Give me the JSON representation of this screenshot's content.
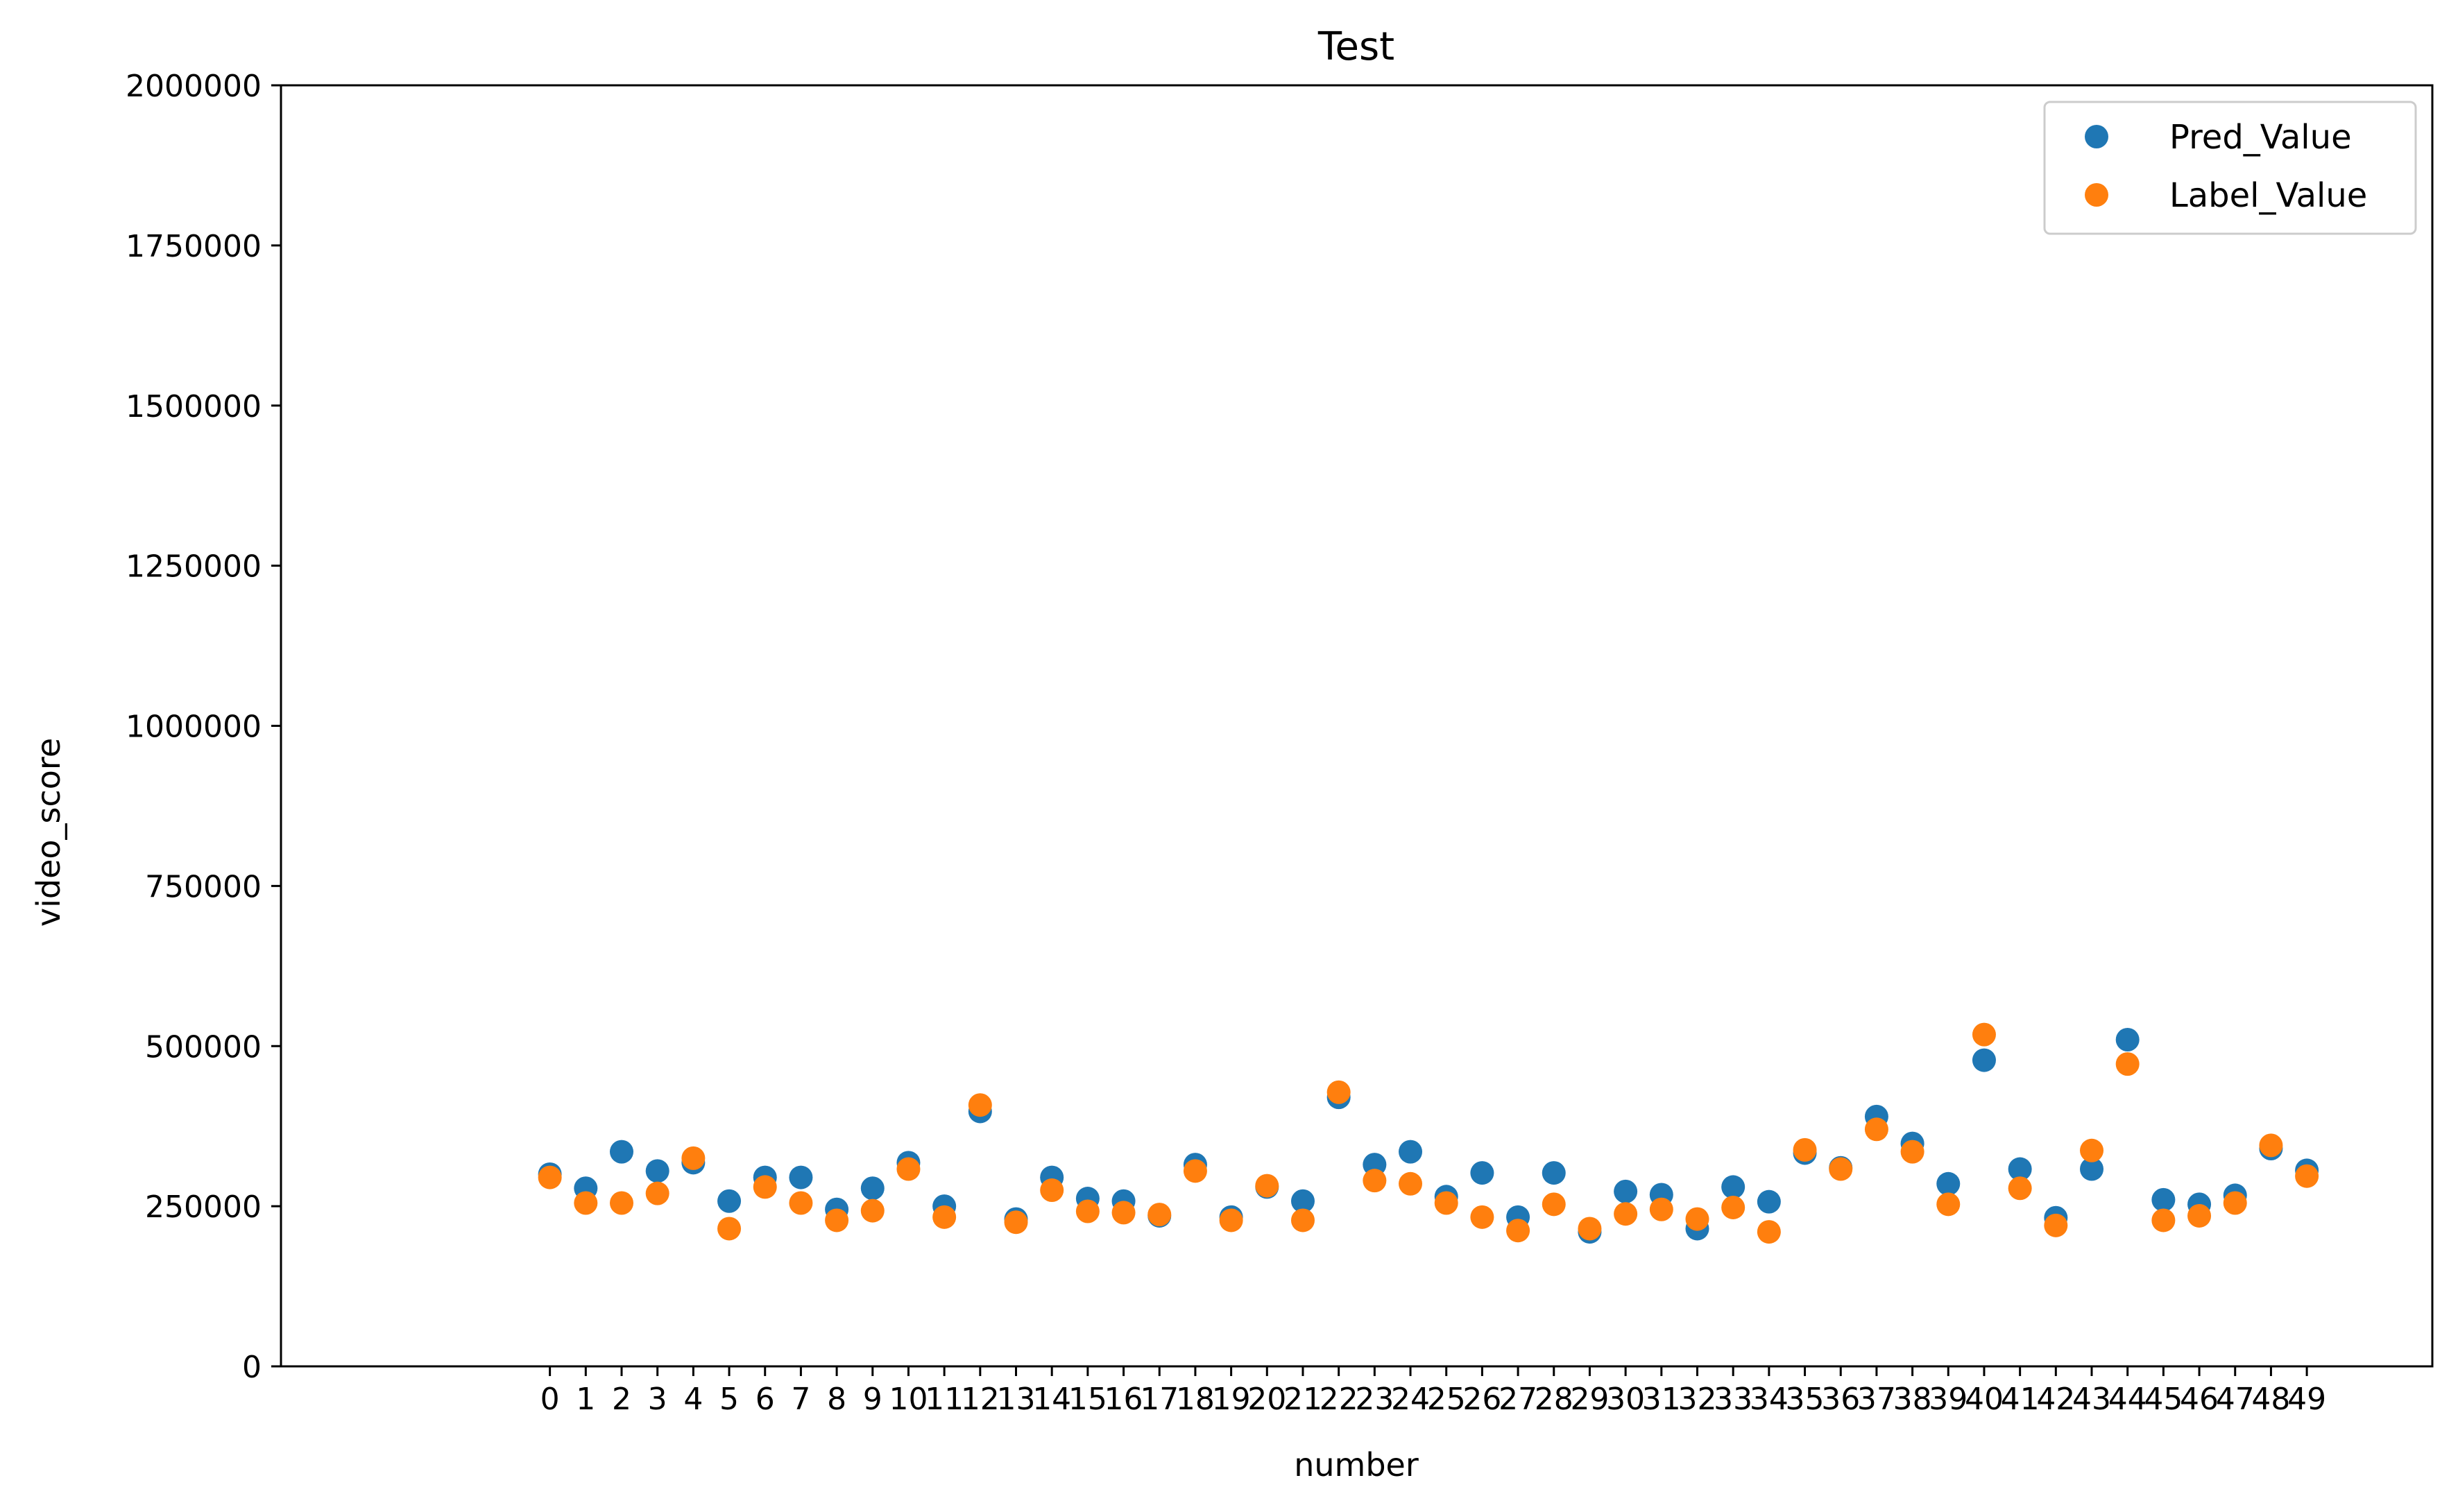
{
  "chart_data": {
    "type": "scatter",
    "title": "Test",
    "xlabel": "number",
    "ylabel": "video_score",
    "x": [
      0,
      1,
      2,
      3,
      4,
      5,
      6,
      7,
      8,
      9,
      10,
      11,
      12,
      13,
      14,
      15,
      16,
      17,
      18,
      19,
      20,
      21,
      22,
      23,
      24,
      25,
      26,
      27,
      28,
      29,
      30,
      31,
      32,
      33,
      34,
      35,
      36,
      37,
      38,
      39,
      40,
      41,
      42,
      43,
      44,
      45,
      46,
      47,
      48,
      49
    ],
    "xticks": [
      "0",
      "1",
      "2",
      "3",
      "4",
      "5",
      "6",
      "7",
      "8",
      "9",
      "10",
      "11",
      "12",
      "13",
      "14",
      "15",
      "16",
      "17",
      "18",
      "19",
      "20",
      "21",
      "22",
      "23",
      "24",
      "25",
      "26",
      "27",
      "28",
      "29",
      "30",
      "31",
      "32",
      "33",
      "34",
      "35",
      "36",
      "37",
      "38",
      "39",
      "40",
      "41",
      "42",
      "43",
      "44",
      "45",
      "46",
      "47",
      "48",
      "49"
    ],
    "ylim": [
      0,
      2000000
    ],
    "yticks": [
      "0",
      "250000",
      "500000",
      "750000",
      "1000000",
      "1250000",
      "1500000",
      "1750000",
      "2000000"
    ],
    "legend_position": "top-right",
    "grid": false,
    "series": [
      {
        "name": "Pred_Value",
        "color": "#1f77b4",
        "values": [
          300000,
          278000,
          335000,
          305000,
          318000,
          258000,
          295000,
          295000,
          245000,
          278000,
          318000,
          250000,
          398000,
          230000,
          295000,
          262000,
          258000,
          235000,
          315000,
          233000,
          280000,
          258000,
          420000,
          315000,
          335000,
          265000,
          302000,
          233000,
          302000,
          210000,
          273000,
          268000,
          215000,
          280000,
          257000,
          333000,
          310000,
          390000,
          348000,
          285000,
          478000,
          308000,
          232000,
          308000,
          510000,
          260000,
          253000,
          267000,
          340000,
          306000
        ]
      },
      {
        "name": "Label_Value",
        "color": "#ff7f0e",
        "values": [
          295000,
          255000,
          255000,
          270000,
          325000,
          215000,
          280000,
          255000,
          228000,
          243000,
          308000,
          233000,
          408000,
          225000,
          275000,
          242000,
          240000,
          237000,
          305000,
          228000,
          282000,
          228000,
          428000,
          290000,
          285000,
          255000,
          233000,
          212000,
          253000,
          215000,
          238000,
          245000,
          230000,
          248000,
          210000,
          338000,
          308000,
          370000,
          335000,
          253000,
          518000,
          278000,
          220000,
          337000,
          472000,
          228000,
          235000,
          255000,
          345000,
          297000
        ]
      }
    ]
  }
}
